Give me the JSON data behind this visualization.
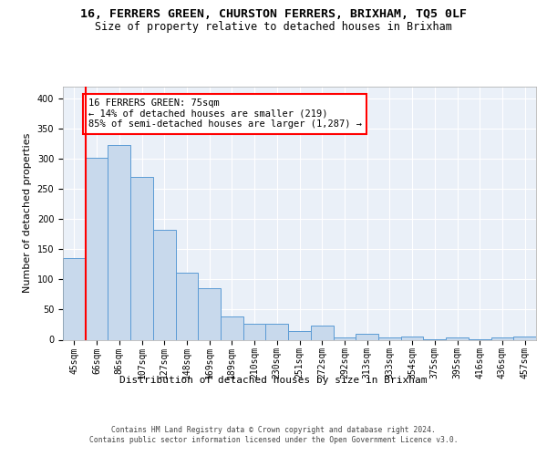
{
  "title1": "16, FERRERS GREEN, CHURSTON FERRERS, BRIXHAM, TQ5 0LF",
  "title2": "Size of property relative to detached houses in Brixham",
  "xlabel": "Distribution of detached houses by size in Brixham",
  "ylabel": "Number of detached properties",
  "footnote": "Contains HM Land Registry data © Crown copyright and database right 2024.\nContains public sector information licensed under the Open Government Licence v3.0.",
  "bar_labels": [
    "45sqm",
    "66sqm",
    "86sqm",
    "107sqm",
    "127sqm",
    "148sqm",
    "169sqm",
    "189sqm",
    "210sqm",
    "230sqm",
    "251sqm",
    "272sqm",
    "292sqm",
    "313sqm",
    "333sqm",
    "354sqm",
    "375sqm",
    "395sqm",
    "416sqm",
    "436sqm",
    "457sqm"
  ],
  "bar_values": [
    135,
    302,
    323,
    270,
    182,
    112,
    85,
    38,
    27,
    27,
    15,
    24,
    4,
    10,
    4,
    6,
    1,
    4,
    1,
    4,
    6
  ],
  "bar_color": "#c8d9ec",
  "bar_edge_color": "#5b9bd5",
  "vline_color": "red",
  "vline_x": 0.5,
  "annotation_text": "16 FERRERS GREEN: 75sqm\n← 14% of detached houses are smaller (219)\n85% of semi-detached houses are larger (1,287) →",
  "ylim": [
    0,
    420
  ],
  "yticks": [
    0,
    50,
    100,
    150,
    200,
    250,
    300,
    350,
    400
  ],
  "bg_color": "#eaf0f8",
  "grid_color": "white",
  "title1_fontsize": 9.5,
  "title2_fontsize": 8.5,
  "xlabel_fontsize": 8,
  "ylabel_fontsize": 8,
  "tick_fontsize": 7,
  "annot_fontsize": 7.5,
  "footnote_fontsize": 5.8
}
